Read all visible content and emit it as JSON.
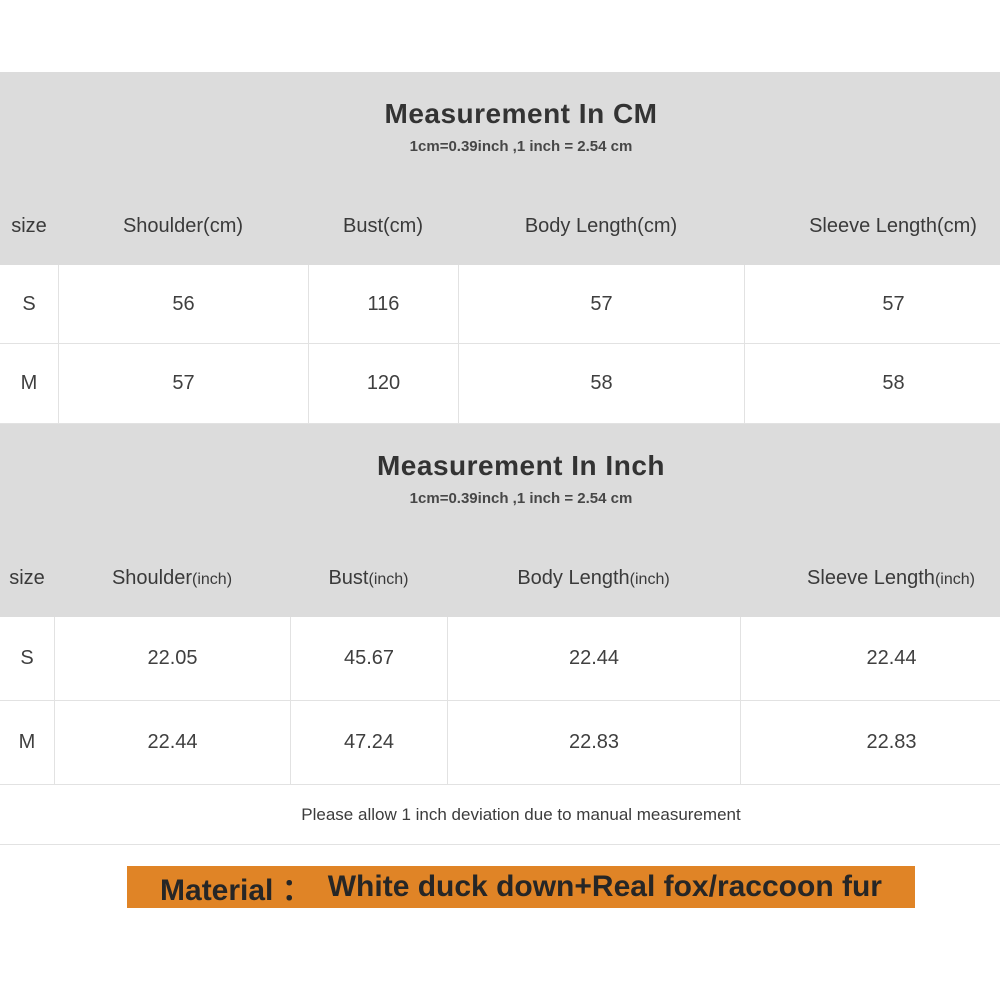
{
  "colors": {
    "section_bg": "#dcdcdc",
    "border": "#e2e2e2",
    "text_dark": "#333333",
    "text_body": "#3f3f3f",
    "highlight_bg": "#e08426",
    "highlight_text": "#262626",
    "page_bg": "#ffffff"
  },
  "cm_section": {
    "title": "Measurement In CM",
    "subtitle": "1cm=0.39inch ,1 inch = 2.54 cm",
    "headers": [
      "size",
      "Shoulder(cm)",
      "Bust(cm)",
      "Body Length(cm)",
      "Sleeve Length(cm)"
    ],
    "rows": [
      {
        "label": "S",
        "values": [
          "56",
          "116",
          "57",
          "57"
        ]
      },
      {
        "label": "M",
        "values": [
          "57",
          "120",
          "58",
          "58"
        ]
      }
    ]
  },
  "inch_section": {
    "title": "Measurement In Inch",
    "subtitle": "1cm=0.39inch ,1 inch = 2.54 cm",
    "headers": [
      {
        "name": "size",
        "unit": ""
      },
      {
        "name": "Shoulder",
        "unit": "(inch)"
      },
      {
        "name": "Bust",
        "unit": "(inch)"
      },
      {
        "name": "Body Length",
        "unit": "(inch)"
      },
      {
        "name": "Sleeve Length",
        "unit": "(inch)"
      }
    ],
    "rows": [
      {
        "label": "S",
        "values": [
          "22.05",
          "45.67",
          "22.44",
          "22.44"
        ]
      },
      {
        "label": "M",
        "values": [
          "22.44",
          "47.24",
          "22.83",
          "22.83"
        ]
      }
    ]
  },
  "note": "Please allow 1 inch deviation due to manual measurement",
  "material": {
    "label": "Material ：",
    "value": "White duck down+Real fox/raccoon fur"
  }
}
